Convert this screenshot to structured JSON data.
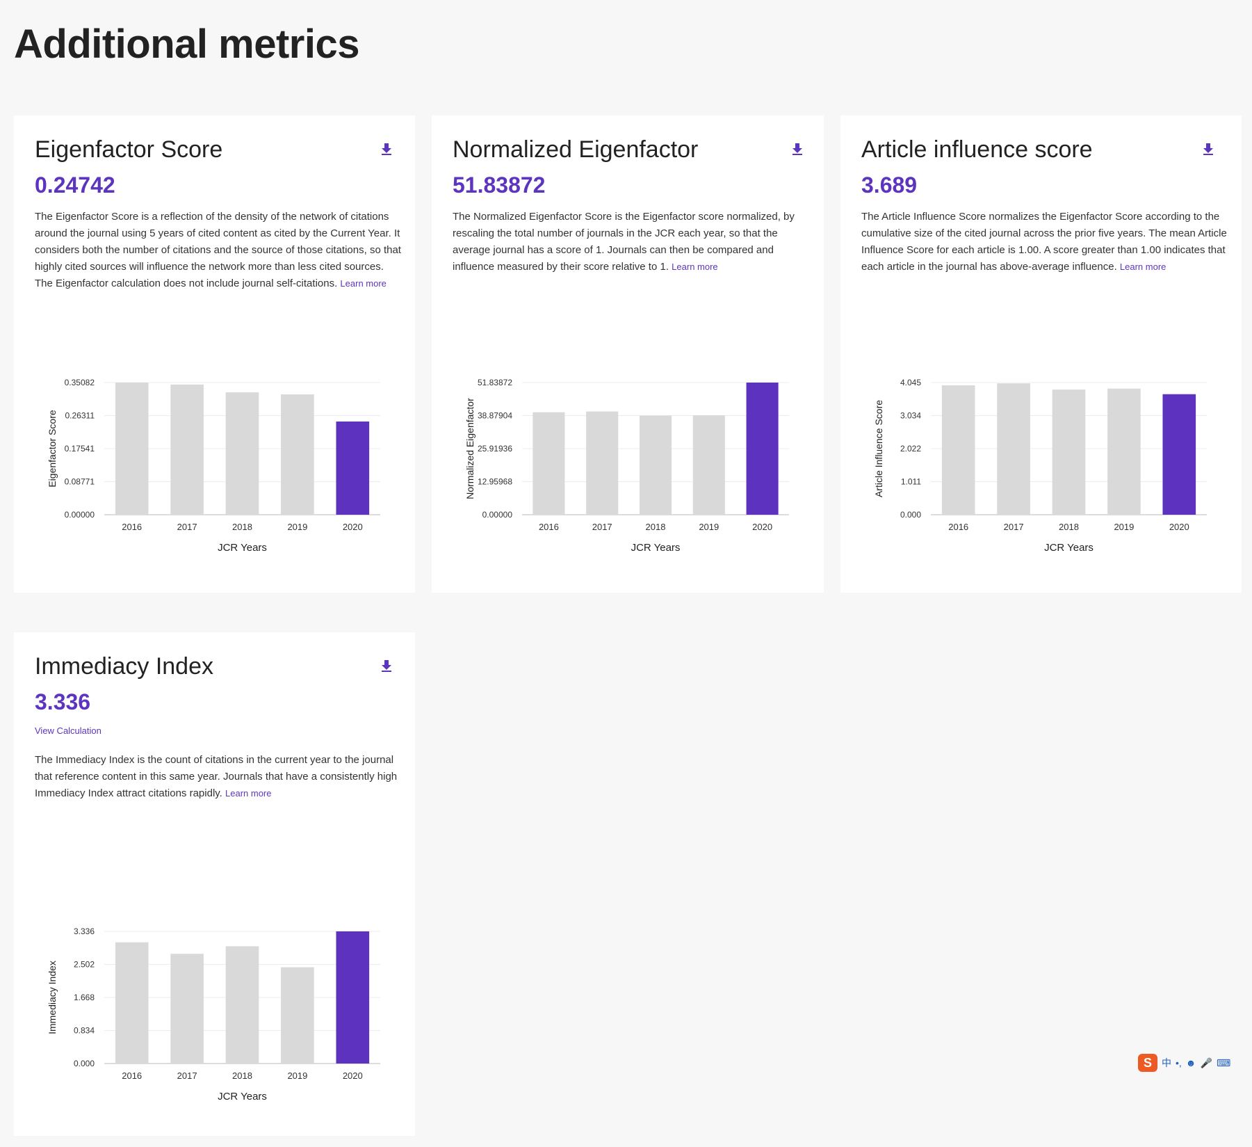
{
  "page": {
    "title": "Additional metrics"
  },
  "cards": [
    {
      "title": "Eigenfactor Score",
      "value": "0.24742",
      "description": "The Eigenfactor Score is a reflection of the density of the network of citations around the journal using 5 years of cited content as cited by the Current Year. It considers both the number of citations and the source of those citations, so that highly cited sources will influence the network more than less cited sources. The Eigenfactor calculation does not include journal self-citations.",
      "learn_more": "Learn more"
    },
    {
      "title": "Normalized Eigenfactor",
      "value": "51.83872",
      "description": "The Normalized Eigenfactor Score is the Eigenfactor score normalized, by rescaling the total number of journals in the JCR each year, so that the average journal has a score of 1. Journals can then be compared and influence measured by their score relative to 1.",
      "learn_more": "Learn more"
    },
    {
      "title": "Article influence score",
      "value": "3.689",
      "description": "The Article Influence Score normalizes the Eigenfactor Score according to the cumulative size of the cited journal across the prior five years. The mean Article Influence Score for each article is 1.00. A score greater than 1.00 indicates that each article in the journal has above-average influence.",
      "learn_more": "Learn more"
    },
    {
      "title": "Immediacy Index",
      "value": "3.336",
      "view_calculation": "View Calculation",
      "description": "The Immediacy Index is the count of citations in the current year to the journal that reference content in this same year. Journals that have a consistently high Immediacy Index attract citations rapidly.",
      "learn_more": "Learn more"
    }
  ],
  "colors": {
    "accent": "#5d34bf",
    "bar_default": "#d9d9d9",
    "bar_highlight": "#5d32bf"
  },
  "chart_data": [
    {
      "type": "bar",
      "categories": [
        "2016",
        "2017",
        "2018",
        "2019",
        "2020"
      ],
      "values": [
        0.35082,
        0.3455,
        0.3248,
        0.3195,
        0.24742
      ],
      "highlight_index": 4,
      "xlabel": "JCR Years",
      "ylabel": "Eigenfactor Score",
      "ylim": [
        0,
        0.35082
      ],
      "yticks": [
        "0.00000",
        "0.08771",
        "0.17541",
        "0.26311",
        "0.35082"
      ],
      "grid": true
    },
    {
      "type": "bar",
      "categories": [
        "2016",
        "2017",
        "2018",
        "2019",
        "2020"
      ],
      "values": [
        40.2,
        40.5,
        38.9,
        39.0,
        51.83872
      ],
      "highlight_index": 4,
      "xlabel": "JCR Years",
      "ylabel": "Normalized Eigenfactor",
      "ylim": [
        0,
        51.83872
      ],
      "yticks": [
        "0.00000",
        "12.95968",
        "25.91936",
        "38.87904",
        "51.83872"
      ],
      "grid": true
    },
    {
      "type": "bar",
      "categories": [
        "2016",
        "2017",
        "2018",
        "2019",
        "2020"
      ],
      "values": [
        3.96,
        4.02,
        3.83,
        3.86,
        3.689
      ],
      "highlight_index": 4,
      "xlabel": "JCR Years",
      "ylabel": "Article Influence Score",
      "ylim": [
        0,
        4.045
      ],
      "yticks": [
        "0.000",
        "1.011",
        "2.022",
        "3.034",
        "4.045"
      ],
      "grid": true
    },
    {
      "type": "bar",
      "categories": [
        "2016",
        "2017",
        "2018",
        "2019",
        "2020"
      ],
      "values": [
        3.06,
        2.77,
        2.96,
        2.43,
        3.336
      ],
      "highlight_index": 4,
      "xlabel": "JCR Years",
      "ylabel": "Immediacy Index",
      "ylim": [
        0,
        3.336
      ],
      "yticks": [
        "0.000",
        "0.834",
        "1.668",
        "2.502",
        "3.336"
      ],
      "grid": true
    }
  ],
  "ime": {
    "logo": "S",
    "label": "中"
  }
}
